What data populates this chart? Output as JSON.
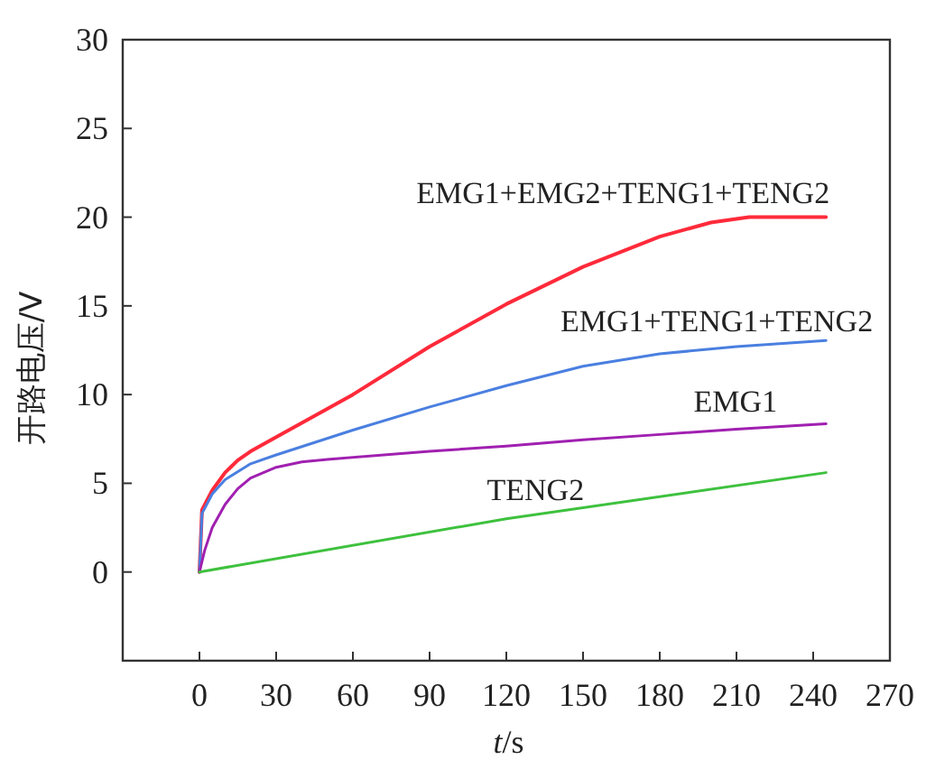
{
  "chart_data": {
    "type": "line",
    "xlabel": "*t*/s",
    "ylabel": "开路电压/V",
    "xlim": [
      -30,
      270
    ],
    "ylim": [
      -5,
      30
    ],
    "xticks": [
      0,
      30,
      60,
      90,
      120,
      150,
      180,
      210,
      240,
      270
    ],
    "yticks": [
      0,
      5,
      10,
      15,
      20,
      25,
      30
    ],
    "grid": false,
    "legend": false,
    "marker": "none",
    "line_style": "solid",
    "series": [
      {
        "name": "EMG1+EMG2+TENG1+TENG2",
        "color": "#ff2a3a",
        "x": [
          0,
          1,
          5,
          10,
          15,
          20,
          30,
          45,
          60,
          90,
          120,
          150,
          180,
          200,
          215,
          245
        ],
        "values": [
          0,
          3.5,
          4.6,
          5.6,
          6.3,
          6.8,
          7.6,
          8.8,
          10.0,
          12.7,
          15.1,
          17.2,
          18.9,
          19.7,
          20,
          20
        ]
      },
      {
        "name": "EMG1+TENG1+TENG2",
        "color": "#4a7fe0",
        "x": [
          0,
          1,
          5,
          10,
          20,
          30,
          45,
          60,
          90,
          120,
          150,
          180,
          210,
          245
        ],
        "values": [
          0,
          3.3,
          4.4,
          5.2,
          6.1,
          6.6,
          7.3,
          8.0,
          9.3,
          10.5,
          11.6,
          12.3,
          12.7,
          13.05
        ]
      },
      {
        "name": "EMG1",
        "color": "#a020b0",
        "x": [
          0,
          2,
          5,
          10,
          15,
          20,
          30,
          40,
          50,
          90,
          120,
          150,
          180,
          210,
          245
        ],
        "values": [
          0,
          1.2,
          2.5,
          3.8,
          4.7,
          5.3,
          5.9,
          6.2,
          6.35,
          6.8,
          7.1,
          7.45,
          7.75,
          8.05,
          8.35
        ]
      },
      {
        "name": "TENG2",
        "color": "#3ec13e",
        "x": [
          0,
          120,
          245
        ],
        "values": [
          0,
          3.0,
          5.6
        ]
      }
    ]
  }
}
